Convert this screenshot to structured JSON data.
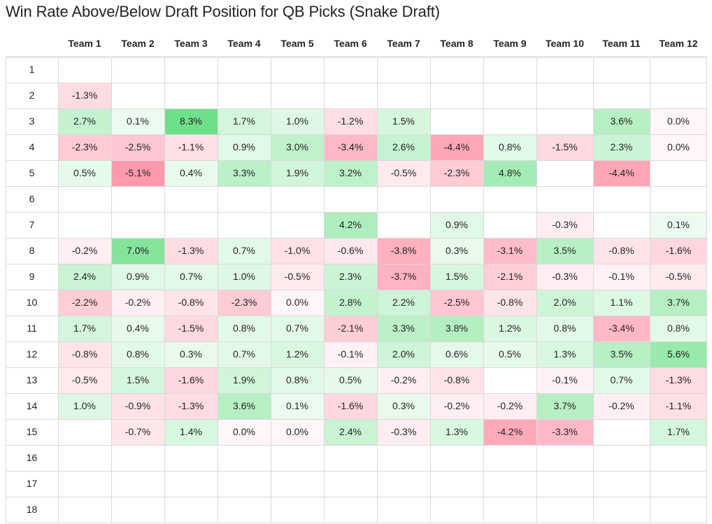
{
  "title": "Win Rate Above/Below Draft Position for QB Picks (Snake Draft)",
  "chart_data": {
    "type": "heatmap",
    "columns": [
      "Team 1",
      "Team 2",
      "Team 3",
      "Team 4",
      "Team 5",
      "Team 6",
      "Team 7",
      "Team 8",
      "Team 9",
      "Team 10",
      "Team 11",
      "Team 12"
    ],
    "rows": [
      "1",
      "2",
      "3",
      "4",
      "5",
      "6",
      "7",
      "8",
      "9",
      "10",
      "11",
      "12",
      "13",
      "14",
      "15",
      "16",
      "17",
      "18"
    ],
    "unit": "%",
    "values": [
      [
        null,
        null,
        null,
        null,
        null,
        null,
        null,
        null,
        null,
        null,
        null,
        null
      ],
      [
        -1.3,
        null,
        null,
        null,
        null,
        null,
        null,
        null,
        null,
        null,
        null,
        null
      ],
      [
        2.7,
        0.1,
        8.3,
        1.7,
        1.0,
        -1.2,
        1.5,
        null,
        null,
        null,
        3.6,
        0.0
      ],
      [
        -2.3,
        -2.5,
        -1.1,
        0.9,
        3.0,
        -3.4,
        2.6,
        -4.4,
        0.8,
        -1.5,
        2.3,
        0.0
      ],
      [
        0.5,
        -5.1,
        0.4,
        3.3,
        1.9,
        3.2,
        -0.5,
        -2.3,
        4.8,
        null,
        -4.4,
        null
      ],
      [
        null,
        null,
        null,
        null,
        null,
        null,
        null,
        null,
        null,
        null,
        null,
        null
      ],
      [
        null,
        null,
        null,
        null,
        null,
        4.2,
        null,
        0.9,
        null,
        -0.3,
        null,
        0.1
      ],
      [
        -0.2,
        7.0,
        -1.3,
        0.7,
        -1.0,
        -0.6,
        -3.8,
        0.3,
        -3.1,
        3.5,
        -0.8,
        -1.6
      ],
      [
        2.4,
        0.9,
        0.7,
        1.0,
        -0.5,
        2.3,
        -3.7,
        1.5,
        -2.1,
        -0.3,
        -0.1,
        -0.5
      ],
      [
        -2.2,
        -0.2,
        -0.8,
        -2.3,
        0.0,
        2.8,
        2.2,
        -2.5,
        -0.8,
        2.0,
        1.1,
        3.7
      ],
      [
        1.7,
        0.4,
        -1.5,
        0.8,
        0.7,
        -2.1,
        3.3,
        3.8,
        1.2,
        0.8,
        -3.4,
        0.8
      ],
      [
        -0.8,
        0.8,
        0.3,
        0.7,
        1.2,
        -0.1,
        2.0,
        0.6,
        0.5,
        1.3,
        3.5,
        5.6
      ],
      [
        -0.5,
        1.5,
        -1.6,
        1.9,
        0.8,
        0.5,
        -0.2,
        -0.8,
        null,
        -0.1,
        0.7,
        -1.3
      ],
      [
        1.0,
        -0.9,
        -1.3,
        3.6,
        0.1,
        -1.6,
        0.3,
        -0.2,
        -0.2,
        3.7,
        -0.2,
        -1.1
      ],
      [
        null,
        -0.7,
        1.4,
        0.0,
        0.0,
        2.4,
        -0.3,
        1.3,
        -4.2,
        -3.3,
        null,
        1.7
      ],
      [
        null,
        null,
        null,
        null,
        null,
        null,
        null,
        null,
        null,
        null,
        null,
        null
      ],
      [
        null,
        null,
        null,
        null,
        null,
        null,
        null,
        null,
        null,
        null,
        null,
        null
      ],
      [
        null,
        null,
        null,
        null,
        null,
        null,
        null,
        null,
        null,
        null,
        null,
        null
      ]
    ],
    "color_scale": {
      "negative": "#ff9aad",
      "neutral": "#ffffff",
      "positive": "#6fe08a"
    }
  }
}
